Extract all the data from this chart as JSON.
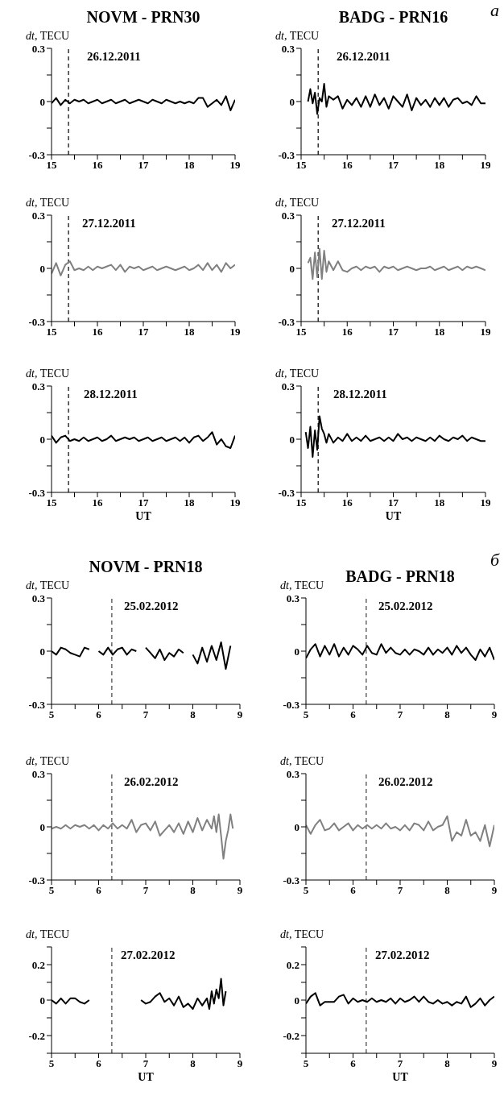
{
  "chart_data": [
    {
      "type": "line",
      "title": "NOVM - PRN30",
      "ylabel": "dt, TECU",
      "annotations": [
        "26.12.2011"
      ],
      "xlim": [
        15,
        19
      ],
      "xticks": [
        15,
        {
          "value": 15.5,
          "label": null
        },
        16,
        {
          "value": 16.5,
          "label": null
        },
        17,
        {
          "value": 17.5,
          "label": null
        },
        18,
        {
          "value": 18.5,
          "label": null
        },
        19
      ],
      "ylim": [
        -0.3,
        0.3
      ],
      "yticks": [
        -0.3,
        {
          "value": -0.15,
          "label": null
        },
        0,
        {
          "value": 0.15,
          "label": null
        },
        0.3
      ],
      "ref_lines": [
        {
          "axis": "x",
          "value": 15.37,
          "color": "#000000",
          "line_style": "dashed"
        }
      ],
      "line_style": "solid",
      "x": [
        15.0,
        15.1,
        15.2,
        15.3,
        15.4,
        15.5,
        15.6,
        15.7,
        15.8,
        15.9,
        16.0,
        16.1,
        16.2,
        16.3,
        16.4,
        16.5,
        16.6,
        16.7,
        16.8,
        16.9,
        17.0,
        17.1,
        17.2,
        17.3,
        17.4,
        17.5,
        17.6,
        17.7,
        17.8,
        17.9,
        18.0,
        18.1,
        18.2,
        18.3,
        18.4,
        18.5,
        18.6,
        18.7,
        18.8,
        18.9,
        19.0
      ],
      "series": [
        {
          "color": "#000000",
          "values": [
            -0.01,
            0.02,
            -0.02,
            0.01,
            -0.01,
            0.01,
            0,
            0.01,
            -0.01,
            0,
            0.01,
            -0.01,
            0,
            0.01,
            -0.01,
            0,
            0.01,
            -0.01,
            0,
            0.01,
            0,
            -0.01,
            0.01,
            0,
            -0.01,
            0.01,
            0,
            -0.01,
            0,
            -0.01,
            0,
            -0.01,
            0.02,
            0.02,
            -0.03,
            -0.01,
            0.01,
            -0.02,
            0.03,
            -0.05,
            0.01
          ]
        }
      ]
    },
    {
      "type": "line",
      "title": "BADG - PRN16",
      "ylabel": "dt, TECU",
      "annotations": [
        "26.12.2011",
        "а"
      ],
      "xlim": [
        15,
        19
      ],
      "xticks": [
        15,
        {
          "value": 15.5,
          "label": null
        },
        16,
        {
          "value": 16.5,
          "label": null
        },
        17,
        {
          "value": 17.5,
          "label": null
        },
        18,
        {
          "value": 18.5,
          "label": null
        },
        19
      ],
      "ylim": [
        -0.3,
        0.3
      ],
      "yticks": [
        -0.3,
        {
          "value": -0.15,
          "label": null
        },
        0,
        {
          "value": 0.15,
          "label": null
        },
        0.3
      ],
      "ref_lines": [
        {
          "axis": "x",
          "value": 15.37,
          "color": "#000000",
          "line_style": "dashed"
        }
      ],
      "line_style": "solid",
      "x": [
        15.15,
        15.2,
        15.25,
        15.3,
        15.35,
        15.4,
        15.45,
        15.5,
        15.55,
        15.6,
        15.7,
        15.8,
        15.9,
        16.0,
        16.1,
        16.2,
        16.3,
        16.4,
        16.5,
        16.6,
        16.7,
        16.8,
        16.9,
        17.0,
        17.1,
        17.2,
        17.3,
        17.4,
        17.5,
        17.6,
        17.7,
        17.8,
        17.9,
        18.0,
        18.1,
        18.2,
        18.3,
        18.4,
        18.5,
        18.6,
        18.7,
        18.8,
        18.9,
        19.0
      ],
      "series": [
        {
          "color": "#000000",
          "values": [
            0,
            0.07,
            -0.01,
            0.05,
            -0.07,
            0.02,
            0,
            0.1,
            -0.03,
            0.03,
            0.01,
            0.03,
            -0.04,
            0.01,
            -0.02,
            0.02,
            -0.03,
            0.03,
            -0.03,
            0.04,
            -0.02,
            0.02,
            -0.04,
            0.03,
            0,
            -0.03,
            0.04,
            -0.05,
            0.02,
            -0.02,
            0.01,
            -0.03,
            0.02,
            -0.02,
            0.02,
            -0.03,
            0.01,
            0.02,
            -0.01,
            0,
            -0.02,
            0.03,
            -0.01,
            -0.01
          ]
        }
      ]
    },
    {
      "type": "line",
      "ylabel": "dt, TECU",
      "annotations": [
        "27.12.2011"
      ],
      "xlim": [
        15,
        19
      ],
      "xticks": [
        15,
        {
          "value": 15.5,
          "label": null
        },
        16,
        {
          "value": 16.5,
          "label": null
        },
        17,
        {
          "value": 17.5,
          "label": null
        },
        18,
        {
          "value": 18.5,
          "label": null
        },
        19
      ],
      "ylim": [
        -0.3,
        0.3
      ],
      "yticks": [
        -0.3,
        {
          "value": -0.15,
          "label": null
        },
        0,
        {
          "value": 0.15,
          "label": null
        },
        0.3
      ],
      "ref_lines": [
        {
          "axis": "x",
          "value": 15.37,
          "color": "#000000",
          "line_style": "dashed"
        }
      ],
      "line_style": "solid",
      "x": [
        15.0,
        15.1,
        15.2,
        15.3,
        15.4,
        15.5,
        15.6,
        15.7,
        15.8,
        15.9,
        16.0,
        16.1,
        16.2,
        16.3,
        16.4,
        16.5,
        16.6,
        16.7,
        16.8,
        16.9,
        17.0,
        17.1,
        17.2,
        17.3,
        17.4,
        17.5,
        17.6,
        17.7,
        17.8,
        17.9,
        18.0,
        18.1,
        18.2,
        18.3,
        18.4,
        18.5,
        18.6,
        18.7,
        18.8,
        18.9,
        19.0
      ],
      "series": [
        {
          "color": "#808080",
          "values": [
            -0.03,
            0.03,
            -0.04,
            0.02,
            0.04,
            -0.01,
            0,
            -0.01,
            0.01,
            -0.01,
            0.01,
            0,
            0.01,
            0.02,
            -0.01,
            0.02,
            -0.02,
            0.01,
            0,
            0.01,
            -0.01,
            0,
            0.01,
            -0.01,
            0,
            0.01,
            0,
            -0.01,
            0,
            0.01,
            -0.01,
            0,
            0.02,
            -0.01,
            0.03,
            -0.01,
            0.02,
            -0.02,
            0.03,
            0,
            0.02
          ]
        }
      ]
    },
    {
      "type": "line",
      "ylabel": "dt, TECU",
      "annotations": [
        "27.12.2011"
      ],
      "xlim": [
        15,
        19
      ],
      "xticks": [
        15,
        {
          "value": 15.5,
          "label": null
        },
        16,
        {
          "value": 16.5,
          "label": null
        },
        17,
        {
          "value": 17.5,
          "label": null
        },
        18,
        {
          "value": 18.5,
          "label": null
        },
        19
      ],
      "ylim": [
        -0.3,
        0.3
      ],
      "yticks": [
        -0.3,
        {
          "value": -0.15,
          "label": null
        },
        0,
        {
          "value": 0.15,
          "label": null
        },
        0.3
      ],
      "ref_lines": [
        {
          "axis": "x",
          "value": 15.37,
          "color": "#000000",
          "line_style": "dashed"
        }
      ],
      "line_style": "solid",
      "x": [
        15.15,
        15.2,
        15.25,
        15.3,
        15.35,
        15.4,
        15.45,
        15.5,
        15.55,
        15.6,
        15.7,
        15.8,
        15.9,
        16.0,
        16.1,
        16.2,
        16.3,
        16.4,
        16.5,
        16.6,
        16.7,
        16.8,
        16.9,
        17.0,
        17.1,
        17.2,
        17.3,
        17.4,
        17.5,
        17.6,
        17.7,
        17.8,
        17.9,
        18.0,
        18.1,
        18.2,
        18.3,
        18.4,
        18.5,
        18.6,
        18.7,
        18.8,
        18.9,
        19.0
      ],
      "series": [
        {
          "color": "#808080",
          "values": [
            0.03,
            0.06,
            -0.06,
            0.09,
            -0.05,
            0.11,
            -0.06,
            0.1,
            -0.02,
            0.04,
            -0.01,
            0.04,
            -0.01,
            -0.02,
            0,
            0.01,
            -0.01,
            0.01,
            0,
            0.01,
            -0.02,
            0.01,
            0,
            0.01,
            -0.01,
            0,
            0.01,
            0,
            -0.01,
            0,
            0,
            0.01,
            -0.01,
            0,
            0.01,
            -0.01,
            0,
            0.01,
            -0.01,
            0.01,
            0,
            0.01,
            0,
            -0.01
          ]
        }
      ]
    },
    {
      "type": "line",
      "ylabel": "dt, TECU",
      "xlabel": "UT",
      "annotations": [
        "28.12.2011"
      ],
      "xlim": [
        15,
        19
      ],
      "xticks": [
        15,
        {
          "value": 15.5,
          "label": null
        },
        16,
        {
          "value": 16.5,
          "label": null
        },
        17,
        {
          "value": 17.5,
          "label": null
        },
        18,
        {
          "value": 18.5,
          "label": null
        },
        19
      ],
      "ylim": [
        -0.3,
        0.3
      ],
      "yticks": [
        -0.3,
        {
          "value": -0.15,
          "label": null
        },
        0,
        {
          "value": 0.15,
          "label": null
        },
        0.3
      ],
      "ref_lines": [
        {
          "axis": "x",
          "value": 15.37,
          "color": "#000000",
          "line_style": "dashed"
        }
      ],
      "line_style": "solid",
      "x": [
        15.0,
        15.1,
        15.2,
        15.3,
        15.4,
        15.5,
        15.6,
        15.7,
        15.8,
        15.9,
        16.0,
        16.1,
        16.2,
        16.3,
        16.4,
        16.5,
        16.6,
        16.7,
        16.8,
        16.9,
        17.0,
        17.1,
        17.2,
        17.3,
        17.4,
        17.5,
        17.6,
        17.7,
        17.8,
        17.9,
        18.0,
        18.1,
        18.2,
        18.3,
        18.4,
        18.5,
        18.6,
        18.7,
        18.8,
        18.9,
        19.0
      ],
      "series": [
        {
          "color": "#000000",
          "values": [
            0.02,
            -0.02,
            0.01,
            0.02,
            -0.01,
            0,
            -0.01,
            0.01,
            -0.01,
            0,
            0.01,
            -0.01,
            0,
            0.02,
            -0.01,
            0,
            0.01,
            0,
            0.01,
            -0.01,
            0,
            0.01,
            -0.01,
            0,
            0.01,
            -0.01,
            0,
            0.01,
            -0.01,
            0.01,
            -0.02,
            0.01,
            0.02,
            -0.01,
            0.01,
            0.04,
            -0.03,
            0,
            -0.04,
            -0.05,
            0.02
          ]
        }
      ]
    },
    {
      "type": "line",
      "ylabel": "dt, TECU",
      "xlabel": "UT",
      "annotations": [
        "28.12.2011"
      ],
      "xlim": [
        15,
        19
      ],
      "xticks": [
        15,
        {
          "value": 15.5,
          "label": null
        },
        16,
        {
          "value": 16.5,
          "label": null
        },
        17,
        {
          "value": 17.5,
          "label": null
        },
        18,
        {
          "value": 18.5,
          "label": null
        },
        19
      ],
      "ylim": [
        -0.3,
        0.3
      ],
      "yticks": [
        -0.3,
        {
          "value": -0.15,
          "label": null
        },
        0,
        {
          "value": 0.15,
          "label": null
        },
        0.3
      ],
      "ref_lines": [
        {
          "axis": "x",
          "value": 15.37,
          "color": "#000000",
          "line_style": "dashed"
        }
      ],
      "line_style": "solid",
      "x": [
        15.1,
        15.15,
        15.2,
        15.25,
        15.3,
        15.35,
        15.4,
        15.45,
        15.5,
        15.55,
        15.6,
        15.7,
        15.8,
        15.9,
        16.0,
        16.1,
        16.2,
        16.3,
        16.4,
        16.5,
        16.6,
        16.7,
        16.8,
        16.9,
        17.0,
        17.1,
        17.2,
        17.3,
        17.4,
        17.5,
        17.6,
        17.7,
        17.8,
        17.9,
        18.0,
        18.1,
        18.2,
        18.3,
        18.4,
        18.5,
        18.6,
        18.7,
        18.8,
        18.9,
        19.0
      ],
      "series": [
        {
          "color": "#000000",
          "values": [
            0.04,
            -0.05,
            0.07,
            -0.1,
            0.05,
            -0.06,
            0.13,
            0.06,
            0.03,
            -0.02,
            0.03,
            -0.02,
            0.01,
            -0.01,
            0.03,
            -0.01,
            0.01,
            -0.01,
            0.02,
            -0.01,
            0,
            0.01,
            -0.01,
            0.01,
            -0.01,
            0.03,
            0,
            0.01,
            -0.01,
            0.01,
            0,
            -0.01,
            0.01,
            -0.01,
            0.02,
            0,
            -0.01,
            0.01,
            0,
            0.02,
            -0.01,
            0.01,
            0,
            -0.01,
            -0.01
          ]
        }
      ]
    },
    {
      "type": "line",
      "title": "NOVM - PRN18",
      "ylabel": "dt, TECU",
      "annotations": [
        "25.02.2012"
      ],
      "xlim": [
        5,
        9
      ],
      "xticks": [
        5,
        {
          "value": 5.5,
          "label": null
        },
        6,
        {
          "value": 6.5,
          "label": null
        },
        7,
        {
          "value": 7.5,
          "label": null
        },
        8,
        {
          "value": 8.5,
          "label": null
        },
        9
      ],
      "ylim": [
        -0.3,
        0.3
      ],
      "yticks": [
        -0.3,
        {
          "value": -0.15,
          "label": null
        },
        0,
        {
          "value": 0.15,
          "label": null
        },
        0.3
      ],
      "ref_lines": [
        {
          "axis": "x",
          "value": 6.28,
          "color": "#404040",
          "line_style": "dashed"
        }
      ],
      "line_style": "solid",
      "x": [
        5.0,
        5.1,
        5.2,
        5.3,
        5.4,
        5.5,
        5.6,
        5.7,
        5.8,
        5.9,
        6.0,
        6.1,
        6.2,
        6.3,
        6.4,
        6.5,
        6.6,
        6.7,
        6.8,
        6.9,
        7.0,
        7.1,
        7.2,
        7.3,
        7.4,
        7.5,
        7.6,
        7.7,
        7.8,
        7.9,
        8.0,
        8.1,
        8.2,
        8.3,
        8.4,
        8.5,
        8.6,
        8.7,
        8.8
      ],
      "series": [
        {
          "color": "#000000",
          "values": [
            0,
            -0.02,
            0.02,
            0.01,
            -0.01,
            -0.02,
            -0.03,
            0.02,
            0.01,
            null,
            0,
            -0.02,
            0.02,
            -0.02,
            0.01,
            0.02,
            -0.02,
            0.01,
            0,
            null,
            0.02,
            -0.01,
            -0.04,
            0.01,
            -0.05,
            -0.01,
            -0.03,
            0.01,
            -0.01,
            null,
            -0.02,
            -0.07,
            0.02,
            -0.06,
            0.03,
            -0.05,
            0.05,
            -0.1,
            0.03
          ]
        }
      ]
    },
    {
      "type": "line",
      "title": "BADG - PRN18",
      "ylabel": "dt, TECU",
      "annotations": [
        "25.02.2012",
        "б"
      ],
      "xlim": [
        5,
        9
      ],
      "xticks": [
        5,
        {
          "value": 5.5,
          "label": null
        },
        6,
        {
          "value": 6.5,
          "label": null
        },
        7,
        {
          "value": 7.5,
          "label": null
        },
        8,
        {
          "value": 8.5,
          "label": null
        },
        9
      ],
      "ylim": [
        -0.3,
        0.3
      ],
      "yticks": [
        -0.3,
        {
          "value": -0.15,
          "label": null
        },
        0,
        {
          "value": 0.15,
          "label": null
        },
        0.3
      ],
      "ref_lines": [
        {
          "axis": "x",
          "value": 6.28,
          "color": "#404040",
          "line_style": "dashed"
        }
      ],
      "line_style": "solid",
      "x": [
        5.0,
        5.1,
        5.2,
        5.3,
        5.4,
        5.5,
        5.6,
        5.7,
        5.8,
        5.9,
        6.0,
        6.1,
        6.2,
        6.3,
        6.4,
        6.5,
        6.6,
        6.7,
        6.8,
        6.9,
        7.0,
        7.1,
        7.2,
        7.3,
        7.4,
        7.5,
        7.6,
        7.7,
        7.8,
        7.9,
        8.0,
        8.1,
        8.2,
        8.3,
        8.4,
        8.5,
        8.6,
        8.7,
        8.8,
        8.9,
        9.0
      ],
      "series": [
        {
          "color": "#000000",
          "values": [
            -0.04,
            0.01,
            0.04,
            -0.03,
            0.03,
            -0.02,
            0.04,
            -0.03,
            0.02,
            -0.02,
            0.03,
            0.01,
            -0.02,
            0.03,
            -0.01,
            -0.02,
            0.04,
            -0.01,
            0.02,
            -0.01,
            -0.02,
            0.01,
            -0.02,
            0.01,
            0,
            -0.02,
            0.02,
            -0.02,
            0.01,
            -0.01,
            0.02,
            -0.02,
            0.03,
            -0.01,
            0.02,
            -0.02,
            -0.05,
            0.01,
            -0.03,
            0.02,
            -0.05
          ]
        }
      ]
    },
    {
      "type": "line",
      "ylabel": "dt, TECU",
      "annotations": [
        "26.02.2012"
      ],
      "xlim": [
        5,
        9
      ],
      "xticks": [
        5,
        {
          "value": 5.5,
          "label": null
        },
        6,
        {
          "value": 6.5,
          "label": null
        },
        7,
        {
          "value": 7.5,
          "label": null
        },
        8,
        {
          "value": 8.5,
          "label": null
        },
        9
      ],
      "ylim": [
        -0.3,
        0.3
      ],
      "yticks": [
        -0.3,
        {
          "value": -0.15,
          "label": null
        },
        0,
        {
          "value": 0.15,
          "label": null
        },
        0.3
      ],
      "ref_lines": [
        {
          "axis": "x",
          "value": 6.28,
          "color": "#404040",
          "line_style": "dashed"
        }
      ],
      "line_style": "solid",
      "x": [
        5.0,
        5.1,
        5.2,
        5.3,
        5.4,
        5.5,
        5.6,
        5.7,
        5.8,
        5.9,
        6.0,
        6.1,
        6.2,
        6.3,
        6.4,
        6.5,
        6.6,
        6.7,
        6.8,
        6.9,
        7.0,
        7.1,
        7.2,
        7.3,
        7.4,
        7.5,
        7.6,
        7.7,
        7.8,
        7.9,
        8.0,
        8.1,
        8.2,
        8.3,
        8.4,
        8.45,
        8.5,
        8.55,
        8.6,
        8.65,
        8.7,
        8.75,
        8.8,
        8.85
      ],
      "series": [
        {
          "color": "#808080",
          "values": [
            -0.01,
            0,
            -0.01,
            0.01,
            -0.01,
            0.01,
            0,
            0.01,
            -0.01,
            0.01,
            -0.02,
            0.01,
            -0.01,
            0.02,
            -0.01,
            0.01,
            -0.01,
            0.04,
            -0.03,
            0.01,
            0.02,
            -0.02,
            0.03,
            -0.05,
            -0.02,
            0.01,
            -0.03,
            0.02,
            -0.04,
            0.03,
            -0.03,
            0.05,
            -0.02,
            0.04,
            -0.01,
            0.06,
            -0.03,
            0.07,
            -0.05,
            -0.18,
            -0.08,
            -0.02,
            0.07,
            -0.01
          ]
        }
      ]
    },
    {
      "type": "line",
      "ylabel": "dt, TECU",
      "annotations": [
        "26.02.2012"
      ],
      "xlim": [
        5,
        9
      ],
      "xticks": [
        5,
        {
          "value": 5.5,
          "label": null
        },
        6,
        {
          "value": 6.5,
          "label": null
        },
        7,
        {
          "value": 7.5,
          "label": null
        },
        8,
        {
          "value": 8.5,
          "label": null
        },
        9
      ],
      "ylim": [
        -0.3,
        0.3
      ],
      "yticks": [
        -0.3,
        {
          "value": -0.15,
          "label": null
        },
        0,
        {
          "value": 0.15,
          "label": null
        },
        0.3
      ],
      "ref_lines": [
        {
          "axis": "x",
          "value": 6.28,
          "color": "#404040",
          "line_style": "dashed"
        }
      ],
      "line_style": "solid",
      "x": [
        5.0,
        5.1,
        5.2,
        5.3,
        5.4,
        5.5,
        5.6,
        5.7,
        5.8,
        5.9,
        6.0,
        6.1,
        6.2,
        6.3,
        6.4,
        6.5,
        6.6,
        6.7,
        6.8,
        6.9,
        7.0,
        7.1,
        7.2,
        7.3,
        7.4,
        7.5,
        7.6,
        7.7,
        7.8,
        7.9,
        8.0,
        8.1,
        8.2,
        8.3,
        8.4,
        8.5,
        8.6,
        8.7,
        8.8,
        8.9,
        9.0
      ],
      "series": [
        {
          "color": "#808080",
          "values": [
            0.01,
            -0.04,
            0.01,
            0.04,
            -0.02,
            -0.01,
            0.02,
            -0.02,
            0,
            0.02,
            -0.02,
            0.01,
            -0.01,
            0.01,
            -0.01,
            0.01,
            -0.01,
            0.02,
            -0.01,
            0,
            -0.02,
            0.01,
            -0.02,
            0.02,
            0.01,
            -0.02,
            0.03,
            -0.02,
            0,
            0.01,
            0.06,
            -0.08,
            -0.03,
            -0.05,
            0.04,
            -0.05,
            -0.03,
            -0.08,
            0.01,
            -0.11,
            0.01
          ]
        }
      ]
    },
    {
      "type": "line",
      "ylabel": "dt, TECU",
      "xlabel": "UT",
      "annotations": [
        "27.02.2012"
      ],
      "xlim": [
        5,
        9
      ],
      "xticks": [
        5,
        {
          "value": 5.5,
          "label": null
        },
        6,
        {
          "value": 6.5,
          "label": null
        },
        7,
        {
          "value": 7.5,
          "label": null
        },
        8,
        {
          "value": 8.5,
          "label": null
        },
        9
      ],
      "ylim": [
        -0.3,
        0.3
      ],
      "yticks": [
        {
          "value": -0.3,
          "label": null
        },
        -0.2,
        {
          "value": -0.1,
          "label": null
        },
        0,
        {
          "value": 0.1,
          "label": null
        },
        0.2,
        {
          "value": 0.3,
          "label": null
        }
      ],
      "ref_lines": [
        {
          "axis": "x",
          "value": 6.28,
          "color": "#404040",
          "line_style": "dashed"
        }
      ],
      "line_style": "solid",
      "x": [
        5.0,
        5.1,
        5.2,
        5.3,
        5.4,
        5.5,
        5.6,
        5.7,
        5.8,
        5.9,
        6.9,
        7.0,
        7.1,
        7.2,
        7.3,
        7.4,
        7.5,
        7.6,
        7.7,
        7.8,
        7.9,
        8.0,
        8.1,
        8.2,
        8.3,
        8.35,
        8.4,
        8.45,
        8.5,
        8.55,
        8.6,
        8.65,
        8.7
      ],
      "series": [
        {
          "color": "#000000",
          "values": [
            0,
            -0.02,
            0.01,
            -0.02,
            0.01,
            0.01,
            -0.01,
            -0.02,
            0,
            null,
            0,
            -0.02,
            -0.01,
            0.02,
            0.04,
            -0.01,
            0.01,
            -0.03,
            0.02,
            -0.04,
            -0.02,
            -0.05,
            0.01,
            -0.03,
            0.01,
            -0.05,
            0.05,
            -0.02,
            0.06,
            0.01,
            0.12,
            -0.03,
            0.05
          ]
        }
      ]
    },
    {
      "type": "line",
      "ylabel": "dt, TECU",
      "xlabel": "UT",
      "annotations": [
        "27.02.2012"
      ],
      "xlim": [
        5,
        9
      ],
      "xticks": [
        5,
        {
          "value": 5.5,
          "label": null
        },
        6,
        {
          "value": 6.5,
          "label": null
        },
        7,
        {
          "value": 7.5,
          "label": null
        },
        8,
        {
          "value": 8.5,
          "label": null
        },
        9
      ],
      "ylim": [
        -0.3,
        0.3
      ],
      "yticks": [
        {
          "value": -0.3,
          "label": null
        },
        -0.2,
        {
          "value": -0.1,
          "label": null
        },
        0,
        {
          "value": 0.1,
          "label": null
        },
        0.2,
        {
          "value": 0.3,
          "label": null
        }
      ],
      "ref_lines": [
        {
          "axis": "x",
          "value": 6.28,
          "color": "#404040",
          "line_style": "dashed"
        }
      ],
      "line_style": "solid",
      "x": [
        5.0,
        5.1,
        5.2,
        5.3,
        5.4,
        5.5,
        5.6,
        5.7,
        5.8,
        5.9,
        6.0,
        6.1,
        6.2,
        6.3,
        6.4,
        6.5,
        6.6,
        6.7,
        6.8,
        6.9,
        7.0,
        7.1,
        7.2,
        7.3,
        7.4,
        7.5,
        7.6,
        7.7,
        7.8,
        7.9,
        8.0,
        8.1,
        8.2,
        8.3,
        8.4,
        8.5,
        8.6,
        8.7,
        8.8,
        8.9,
        9.0
      ],
      "series": [
        {
          "color": "#000000",
          "values": [
            -0.02,
            0.02,
            0.04,
            -0.03,
            -0.01,
            -0.01,
            -0.01,
            0.02,
            0.03,
            -0.02,
            0.01,
            -0.01,
            0,
            -0.01,
            0.01,
            -0.01,
            0,
            -0.01,
            0.01,
            -0.02,
            0.01,
            -0.01,
            0,
            0.02,
            -0.01,
            0.02,
            -0.01,
            -0.02,
            0,
            -0.02,
            -0.01,
            -0.03,
            -0.01,
            -0.02,
            0.02,
            -0.04,
            -0.02,
            0.01,
            -0.03,
            0,
            0.02
          ]
        }
      ]
    }
  ]
}
